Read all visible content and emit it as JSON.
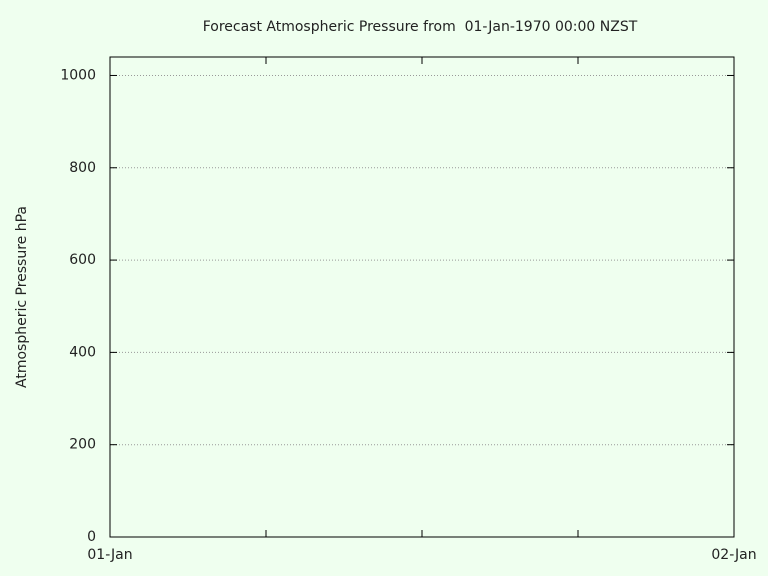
{
  "chart_data": {
    "type": "line",
    "title": "Forecast Atmospheric Pressure from  01-Jan-1970 00:00 NZST",
    "y_label": "Atmospheric Pressure hPa",
    "series": [],
    "xlim": [
      0,
      24
    ],
    "xticks": [
      {
        "value": 0,
        "label": "01-Jan"
      },
      {
        "value": 24,
        "label": "02-Jan"
      }
    ],
    "xminor_ticks": [
      6,
      12,
      18
    ],
    "ylim": [
      0,
      1040
    ],
    "yticks": [
      0,
      200,
      400,
      600,
      800,
      1000
    ],
    "grid": true
  }
}
